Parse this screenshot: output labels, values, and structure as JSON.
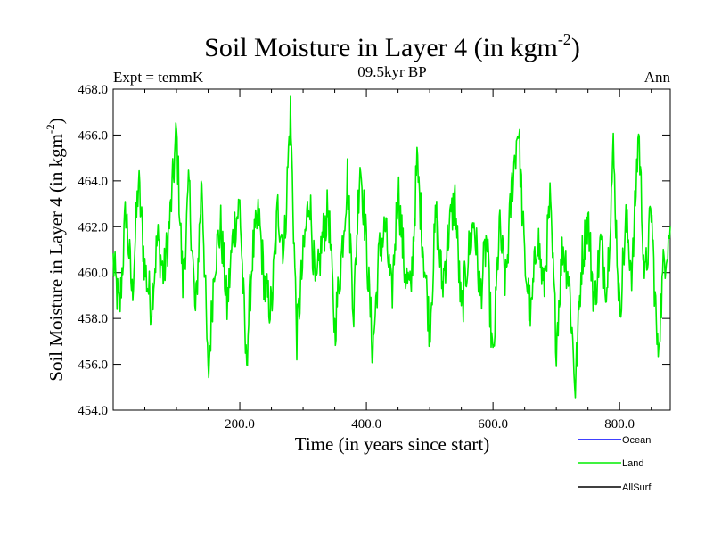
{
  "chart_data": {
    "type": "line",
    "title": "Soil Moisture in Layer 4 (in kgm",
    "title_exponent": "-2",
    "title_close": ")",
    "subtitle": "09.5kyr BP",
    "left_label": "Expt = temmK",
    "right_label": "Ann",
    "xlabel": "Time (in years since start)",
    "ylabel": "Soil Moisture in Layer 4 (in kgm",
    "ylabel_exponent": "-2",
    "ylabel_close": ")",
    "xlim": [
      0,
      880
    ],
    "ylim": [
      454,
      468
    ],
    "xticks": [
      200,
      400,
      600,
      800
    ],
    "xtick_labels": [
      "200.0",
      "400.0",
      "600.0",
      "800.0"
    ],
    "yticks": [
      454,
      456,
      458,
      460,
      462,
      464,
      466,
      468
    ],
    "ytick_labels": [
      "454.0",
      "456.0",
      "458.0",
      "460.0",
      "462.0",
      "464.0",
      "466.0",
      "468.0"
    ],
    "series": [
      {
        "name": "Land",
        "color": "#00ee00",
        "x_start": 0,
        "x_step": 10,
        "values": [
          460.5,
          458.2,
          462.8,
          459.0,
          464.0,
          460.2,
          458.6,
          461.5,
          459.8,
          462.4,
          466.1,
          459.5,
          463.8,
          458.0,
          464.2,
          455.3,
          460.5,
          462.0,
          458.5,
          461.8,
          463.0,
          456.0,
          460.8,
          462.5,
          459.2,
          458.4,
          462.8,
          461.0,
          467.0,
          457.2,
          460.6,
          463.5,
          459.0,
          461.4,
          462.8,
          457.5,
          460.5,
          464.2,
          458.3,
          465.0,
          461.2,
          456.5,
          460.8,
          462.0,
          458.8,
          463.8,
          460.2,
          459.0,
          464.8,
          461.0,
          457.5,
          462.6,
          459.4,
          461.8,
          463.2,
          458.2,
          460.6,
          462.3,
          459.0,
          461.5,
          455.9,
          462.0,
          459.5,
          463.8,
          466.5,
          460.5,
          458.0,
          461.8,
          459.2,
          463.0,
          457.0,
          461.2,
          459.8,
          455.0,
          460.5,
          462.4,
          458.6,
          461.3,
          459.4,
          465.3,
          458.2,
          462.2,
          460.0,
          466.3,
          459.5,
          462.8,
          456.4,
          460.5,
          462.0
        ]
      },
      {
        "name": "Ocean",
        "color": "#0000ff",
        "values": []
      },
      {
        "name": "AllSurf",
        "color": "#000000",
        "values": []
      }
    ],
    "legend_position": "bottom-right",
    "grid": false
  }
}
